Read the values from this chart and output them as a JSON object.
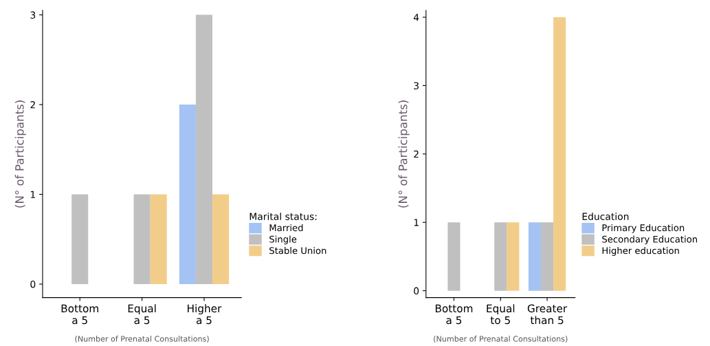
{
  "chart_data": [
    {
      "type": "bar",
      "categories": [
        "Bottom\na 5",
        "Equal\na 5",
        "Higher\na 5"
      ],
      "xlabel": "(Number of Prenatal Consultations)",
      "ylabel": "(N° of Participants)",
      "legend_title": "Marital status:",
      "legend": "right",
      "grid": false,
      "ylim": [
        -0.15,
        3.05
      ],
      "yticks": [
        0,
        1,
        2,
        3
      ],
      "series": [
        {
          "name": "Married",
          "color": "#a4c2f4",
          "values": [
            0,
            0,
            2
          ]
        },
        {
          "name": "Single",
          "color": "#c0c0c0",
          "values": [
            1,
            1,
            3
          ]
        },
        {
          "name": "Stable Union",
          "color": "#f2cd8a",
          "values": [
            0,
            1,
            1
          ]
        }
      ]
    },
    {
      "type": "bar",
      "categories": [
        "Bottom\na 5",
        "Equal\nto 5",
        "Greater\nthan 5"
      ],
      "xlabel": "(Number of Prenatal Consultations)",
      "ylabel": "(N° of Participants)",
      "legend_title": "Education",
      "legend": "right",
      "grid": false,
      "ylim": [
        -0.1,
        4.1
      ],
      "yticks": [
        0,
        1,
        2,
        3,
        4
      ],
      "series": [
        {
          "name": "Primary Education",
          "color": "#a4c2f4",
          "values": [
            0,
            0,
            1
          ]
        },
        {
          "name": "Secondary Education",
          "color": "#c0c0c0",
          "values": [
            1,
            1,
            1
          ]
        },
        {
          "name": "Higher education",
          "color": "#f2cd8a",
          "values": [
            0,
            1,
            4
          ]
        }
      ]
    }
  ]
}
